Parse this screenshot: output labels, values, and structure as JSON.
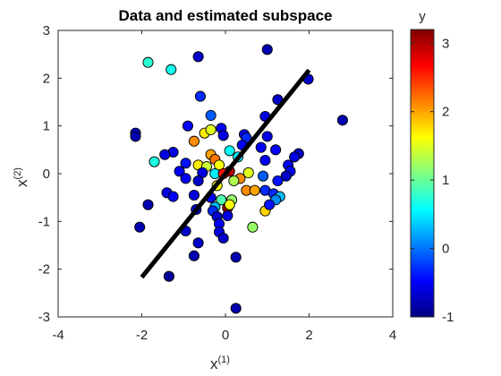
{
  "chart_data": {
    "type": "scatter",
    "title": "Data and estimated subspace",
    "xlabel_base": "x",
    "xlabel_sup": "(1)",
    "ylabel_base": "x",
    "ylabel_sup": "(2)",
    "xlim": [
      -4,
      4
    ],
    "ylim": [
      -3,
      3
    ],
    "xticks": [
      "-4",
      "-2",
      "0",
      "2",
      "4"
    ],
    "yticks": [
      "-3",
      "-2",
      "-1",
      "0",
      "1",
      "2",
      "3"
    ],
    "grid": false,
    "colorbar": {
      "label": "y",
      "range": [
        -1,
        3.2
      ],
      "ticks": [
        "-1",
        "0",
        "1",
        "2",
        "3"
      ],
      "colormap": "jet"
    },
    "subspace_line": {
      "x": [
        -2.0,
        2.0
      ],
      "y": [
        -2.17,
        2.17
      ],
      "color": "#000000"
    },
    "points": [
      {
        "x": -1.85,
        "y": 2.33,
        "c": 0.75
      },
      {
        "x": -1.3,
        "y": 2.18,
        "c": 0.65
      },
      {
        "x": -0.65,
        "y": 2.45,
        "c": -0.7
      },
      {
        "x": 1.0,
        "y": 2.6,
        "c": -0.8
      },
      {
        "x": 1.98,
        "y": 1.98,
        "c": -0.7
      },
      {
        "x": -0.6,
        "y": 1.62,
        "c": -0.3
      },
      {
        "x": 1.25,
        "y": 1.55,
        "c": -0.7
      },
      {
        "x": -0.35,
        "y": 1.22,
        "c": -0.1
      },
      {
        "x": 0.95,
        "y": 1.2,
        "c": -0.6
      },
      {
        "x": 2.8,
        "y": 1.12,
        "c": -0.8
      },
      {
        "x": -2.15,
        "y": 0.85,
        "c": -0.7
      },
      {
        "x": -2.15,
        "y": 0.78,
        "c": -0.8
      },
      {
        "x": -0.9,
        "y": 1.0,
        "c": -0.5
      },
      {
        "x": -0.1,
        "y": 0.95,
        "c": -0.5
      },
      {
        "x": 0.45,
        "y": 0.82,
        "c": -0.5
      },
      {
        "x": 0.5,
        "y": 0.75,
        "c": -0.3
      },
      {
        "x": 1.0,
        "y": 0.78,
        "c": -0.6
      },
      {
        "x": -0.75,
        "y": 0.68,
        "c": 2.1
      },
      {
        "x": -0.5,
        "y": 0.85,
        "c": 1.7
      },
      {
        "x": -0.35,
        "y": 0.92,
        "c": 1.5
      },
      {
        "x": -0.05,
        "y": 0.8,
        "c": -0.6
      },
      {
        "x": 0.4,
        "y": 0.6,
        "c": -0.5
      },
      {
        "x": 0.85,
        "y": 0.55,
        "c": -0.5
      },
      {
        "x": 1.2,
        "y": 0.5,
        "c": -0.5
      },
      {
        "x": -1.25,
        "y": 0.45,
        "c": -0.6
      },
      {
        "x": -1.45,
        "y": 0.4,
        "c": -0.6
      },
      {
        "x": -0.35,
        "y": 0.4,
        "c": 2.0
      },
      {
        "x": -0.25,
        "y": 0.3,
        "c": 2.2
      },
      {
        "x": 0.1,
        "y": 0.48,
        "c": 0.6
      },
      {
        "x": 0.3,
        "y": 0.35,
        "c": 0.5
      },
      {
        "x": 0.95,
        "y": 0.28,
        "c": -0.5
      },
      {
        "x": 1.75,
        "y": 0.42,
        "c": -0.7
      },
      {
        "x": 1.65,
        "y": 0.35,
        "c": -0.6
      },
      {
        "x": -1.7,
        "y": 0.25,
        "c": 0.7
      },
      {
        "x": -0.95,
        "y": 0.22,
        "c": -0.4
      },
      {
        "x": -0.65,
        "y": 0.18,
        "c": 1.7
      },
      {
        "x": -0.45,
        "y": 0.15,
        "c": 1.4
      },
      {
        "x": -0.15,
        "y": 0.18,
        "c": 1.6
      },
      {
        "x": 0.1,
        "y": 0.05,
        "c": 3.0
      },
      {
        "x": 1.5,
        "y": 0.18,
        "c": -0.5
      },
      {
        "x": 1.55,
        "y": 0.05,
        "c": -0.5
      },
      {
        "x": 1.45,
        "y": -0.05,
        "c": -0.7
      },
      {
        "x": -1.1,
        "y": 0.05,
        "c": -0.5
      },
      {
        "x": -0.55,
        "y": 0.02,
        "c": -0.6
      },
      {
        "x": -0.25,
        "y": 0.0,
        "c": 0.5
      },
      {
        "x": -0.05,
        "y": 0.0,
        "c": 2.6
      },
      {
        "x": 0.35,
        "y": -0.1,
        "c": 2.1
      },
      {
        "x": 0.55,
        "y": 0.02,
        "c": 1.5
      },
      {
        "x": 0.9,
        "y": -0.05,
        "c": -0.1
      },
      {
        "x": 1.25,
        "y": -0.15,
        "c": -0.4
      },
      {
        "x": -0.95,
        "y": -0.1,
        "c": -0.5
      },
      {
        "x": -0.65,
        "y": -0.15,
        "c": -0.7
      },
      {
        "x": -0.2,
        "y": -0.25,
        "c": 1.6
      },
      {
        "x": 0.2,
        "y": -0.15,
        "c": 1.3
      },
      {
        "x": 0.5,
        "y": -0.35,
        "c": 2.1
      },
      {
        "x": 0.7,
        "y": -0.35,
        "c": 2.0
      },
      {
        "x": 0.95,
        "y": -0.35,
        "c": -0.3
      },
      {
        "x": 1.15,
        "y": -0.42,
        "c": -0.3
      },
      {
        "x": 1.3,
        "y": -0.48,
        "c": 0.3
      },
      {
        "x": 1.2,
        "y": -0.55,
        "c": 0.1
      },
      {
        "x": -1.85,
        "y": -0.65,
        "c": -0.8
      },
      {
        "x": -1.4,
        "y": -0.4,
        "c": -0.6
      },
      {
        "x": -1.25,
        "y": -0.48,
        "c": -0.5
      },
      {
        "x": -0.75,
        "y": -0.45,
        "c": -0.6
      },
      {
        "x": -0.35,
        "y": -0.5,
        "c": -0.5
      },
      {
        "x": -0.1,
        "y": -0.55,
        "c": 0.9
      },
      {
        "x": 0.15,
        "y": -0.55,
        "c": 1.2
      },
      {
        "x": 0.05,
        "y": -0.72,
        "c": 3.1
      },
      {
        "x": 0.1,
        "y": -0.65,
        "c": 1.6
      },
      {
        "x": 0.95,
        "y": -0.78,
        "c": 1.8
      },
      {
        "x": 1.05,
        "y": -0.65,
        "c": -0.4
      },
      {
        "x": -0.7,
        "y": -0.75,
        "c": -0.7
      },
      {
        "x": -0.25,
        "y": -0.7,
        "c": 0.3
      },
      {
        "x": -0.3,
        "y": -0.78,
        "c": -0.3
      },
      {
        "x": -0.2,
        "y": -0.9,
        "c": -0.7
      },
      {
        "x": 0.05,
        "y": -0.88,
        "c": -0.6
      },
      {
        "x": 0.65,
        "y": -1.12,
        "c": 1.2
      },
      {
        "x": -2.05,
        "y": -1.12,
        "c": -0.8
      },
      {
        "x": -0.95,
        "y": -1.2,
        "c": -0.7
      },
      {
        "x": -0.15,
        "y": -1.05,
        "c": -0.5
      },
      {
        "x": -0.15,
        "y": -1.22,
        "c": -0.6
      },
      {
        "x": -0.05,
        "y": -1.35,
        "c": -0.7
      },
      {
        "x": -0.65,
        "y": -1.45,
        "c": -0.7
      },
      {
        "x": -0.75,
        "y": -1.72,
        "c": -0.8
      },
      {
        "x": 0.25,
        "y": -1.75,
        "c": -0.8
      },
      {
        "x": -1.35,
        "y": -2.15,
        "c": -0.9
      },
      {
        "x": 0.25,
        "y": -2.82,
        "c": -0.8
      }
    ]
  }
}
